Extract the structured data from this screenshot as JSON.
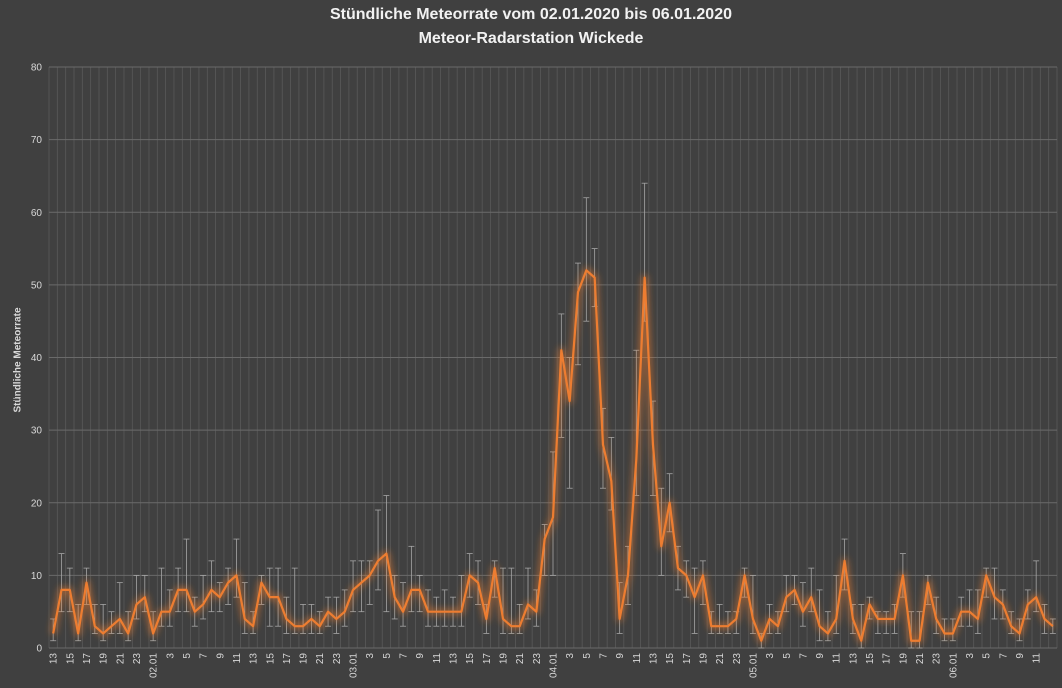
{
  "chart_data": {
    "type": "line",
    "title": "Stündliche Meteorrate vom 02.01.2020 bis 06.01.2020",
    "subtitle": "Meteor-Radarstation Wickede",
    "ylabel": "Stündliche Meteorrate",
    "xlabel": "",
    "ylim": [
      0,
      80
    ],
    "yticks": [
      0,
      10,
      20,
      30,
      40,
      50,
      60,
      70,
      80
    ],
    "grid": true,
    "legend": "none",
    "x_tick_labels": [
      "13",
      "15",
      "17",
      "19",
      "21",
      "23",
      "02.01",
      "3",
      "5",
      "7",
      "9",
      "11",
      "13",
      "15",
      "17",
      "19",
      "21",
      "23",
      "03.01",
      "3",
      "5",
      "7",
      "9",
      "11",
      "13",
      "15",
      "17",
      "19",
      "21",
      "23",
      "04.01",
      "3",
      "5",
      "7",
      "9",
      "11",
      "13",
      "15",
      "17",
      "19",
      "21",
      "23",
      "05.01",
      "3",
      "5",
      "7",
      "9",
      "11",
      "13",
      "15",
      "17",
      "19",
      "21",
      "23",
      "06.01",
      "3",
      "5",
      "7",
      "9",
      "11"
    ],
    "series": [
      {
        "color": "#ed7d31",
        "values": [
          2,
          8,
          8,
          2,
          9,
          3,
          2,
          3,
          4,
          2,
          6,
          7,
          2,
          5,
          5,
          8,
          8,
          5,
          6,
          8,
          7,
          9,
          10,
          4,
          3,
          9,
          7,
          7,
          4,
          3,
          3,
          4,
          3,
          5,
          4,
          5,
          8,
          9,
          10,
          12,
          13,
          7,
          5,
          8,
          8,
          5,
          5,
          5,
          5,
          5,
          10,
          9,
          4,
          11,
          4,
          3,
          3,
          6,
          5,
          15,
          18,
          41,
          34,
          49,
          52,
          51,
          28,
          23,
          4,
          10,
          26,
          51,
          28,
          14,
          20,
          11,
          10,
          7,
          10,
          3,
          3,
          3,
          4,
          10,
          4,
          1,
          4,
          3,
          7,
          8,
          5,
          7,
          3,
          2,
          4,
          12,
          4,
          1,
          6,
          4,
          4,
          4,
          10,
          1,
          1,
          9,
          4,
          2,
          2,
          5,
          5,
          4,
          10,
          7,
          6,
          3,
          2,
          6,
          7,
          4,
          3
        ],
        "err_lo": [
          1,
          3,
          3,
          1,
          3,
          1,
          1,
          1,
          2,
          1,
          2,
          2,
          1,
          2,
          2,
          3,
          3,
          2,
          2,
          3,
          2,
          3,
          3,
          2,
          1,
          3,
          4,
          4,
          2,
          1,
          1,
          2,
          1,
          2,
          2,
          2,
          3,
          4,
          4,
          4,
          8,
          3,
          2,
          3,
          3,
          2,
          2,
          2,
          2,
          2,
          3,
          3,
          2,
          4,
          2,
          1,
          1,
          2,
          2,
          5,
          8,
          12,
          12,
          10,
          7,
          4,
          6,
          4,
          2,
          4,
          5,
          6,
          7,
          4,
          4,
          3,
          3,
          5,
          4,
          1,
          1,
          1,
          2,
          3,
          2,
          1,
          2,
          1,
          2,
          2,
          2,
          2,
          2,
          1,
          2,
          4,
          2,
          1,
          2,
          2,
          2,
          2,
          3,
          1,
          1,
          3,
          2,
          1,
          1,
          2,
          2,
          2,
          3,
          3,
          2,
          1,
          1,
          2,
          2,
          2,
          1
        ],
        "err_hi": [
          2,
          5,
          3,
          4,
          2,
          3,
          4,
          2,
          5,
          3,
          4,
          3,
          3,
          6,
          3,
          3,
          7,
          2,
          4,
          4,
          2,
          2,
          5,
          5,
          2,
          1,
          4,
          4,
          3,
          8,
          3,
          2,
          2,
          2,
          3,
          3,
          4,
          3,
          2,
          7,
          8,
          3,
          4,
          6,
          2,
          3,
          2,
          3,
          2,
          5,
          3,
          3,
          2,
          1,
          7,
          8,
          3,
          5,
          3,
          2,
          9,
          5,
          6,
          4,
          10,
          4,
          5,
          6,
          5,
          4,
          15,
          13,
          6,
          8,
          4,
          3,
          2,
          4,
          2,
          2,
          3,
          2,
          1,
          1,
          6,
          1,
          2,
          2,
          3,
          2,
          4,
          4,
          5,
          3,
          6,
          3,
          2,
          5,
          1,
          1,
          1,
          2,
          3,
          4,
          4,
          1,
          3,
          2,
          2,
          2,
          3,
          4,
          1,
          4,
          2,
          2,
          2,
          2,
          5,
          2,
          1
        ]
      }
    ]
  }
}
